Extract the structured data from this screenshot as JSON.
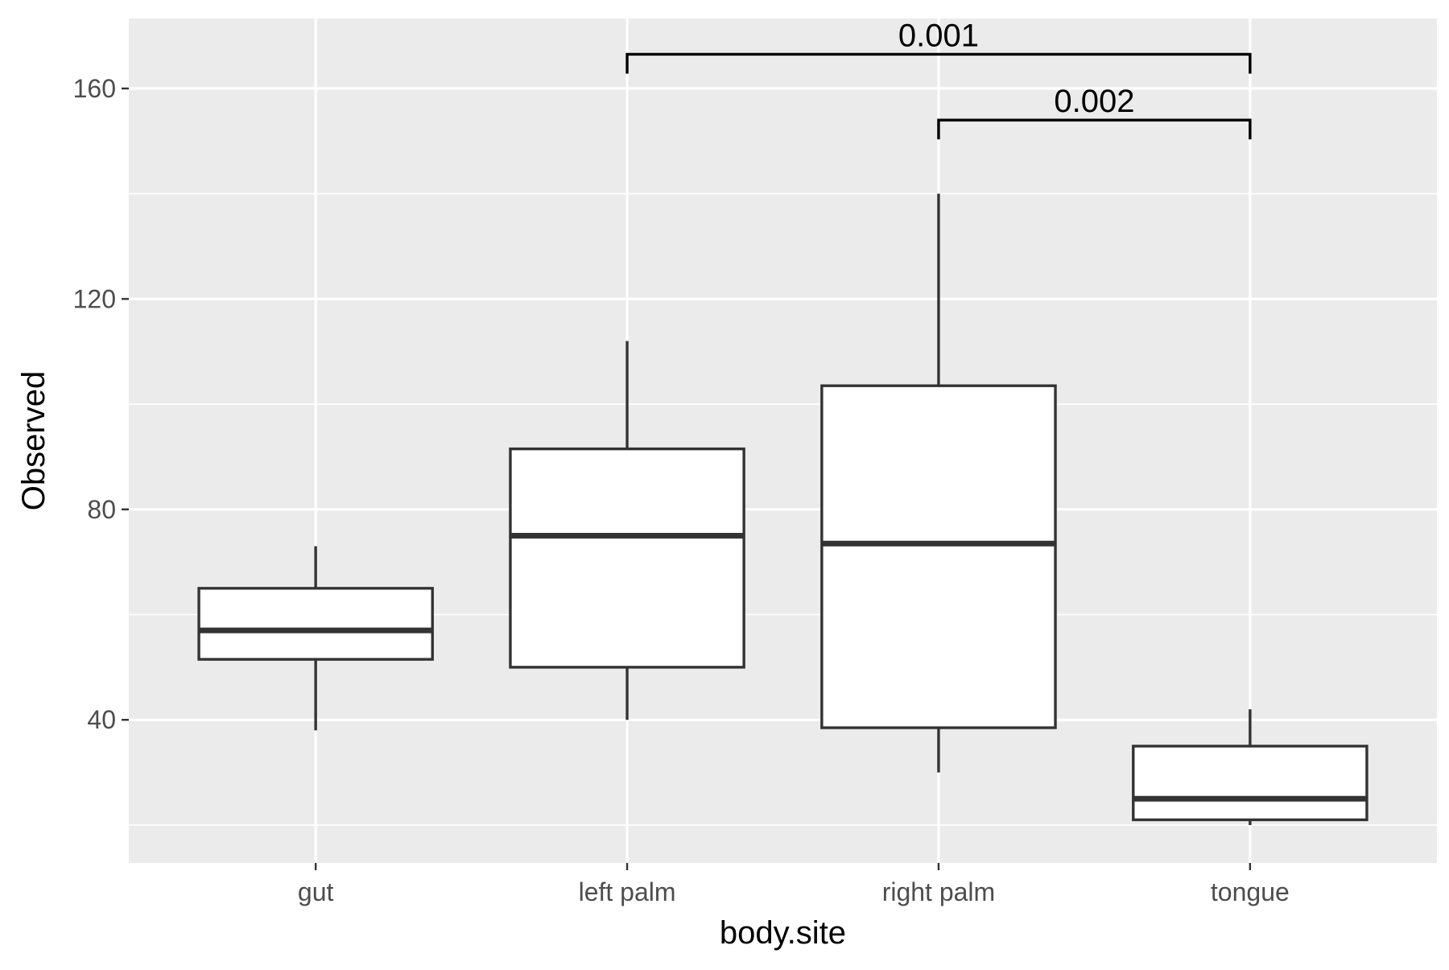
{
  "chart_data": {
    "type": "boxplot",
    "title": "",
    "xlabel": "body.site",
    "ylabel": "Observed",
    "categories": [
      "gut",
      "left palm",
      "right palm",
      "tongue"
    ],
    "boxes": [
      {
        "category": "gut",
        "whisker_low": 38,
        "q1": 51.5,
        "median": 57,
        "q3": 65,
        "whisker_high": 73
      },
      {
        "category": "left palm",
        "whisker_low": 40,
        "q1": 50,
        "median": 75,
        "q3": 91.5,
        "whisker_high": 112
      },
      {
        "category": "right palm",
        "whisker_low": 30,
        "q1": 38.5,
        "median": 73.5,
        "q3": 103.5,
        "whisker_high": 140
      },
      {
        "category": "tongue",
        "whisker_low": 20,
        "q1": 21,
        "median": 25,
        "q3": 35,
        "whisker_high": 42
      }
    ],
    "ylim": [
      12.8,
      173.3
    ],
    "y_ticks": [
      40,
      80,
      120,
      160
    ],
    "y_minor_ticks": [
      20,
      60,
      100,
      140
    ],
    "significance": [
      {
        "from": "left palm",
        "to": "tongue",
        "label": "0.001",
        "y": 166.5
      },
      {
        "from": "right palm",
        "to": "tongue",
        "label": "0.002",
        "y": 154
      }
    ],
    "grid": true,
    "colors": {
      "panel_background": "#ebebeb",
      "grid_major": "#ffffff",
      "grid_minor": "#ffffff",
      "box_fill": "#ffffff",
      "box_line": "#333333",
      "tick_text": "#4d4d4d",
      "title_text": "#000000",
      "bracket": "#000000"
    }
  }
}
